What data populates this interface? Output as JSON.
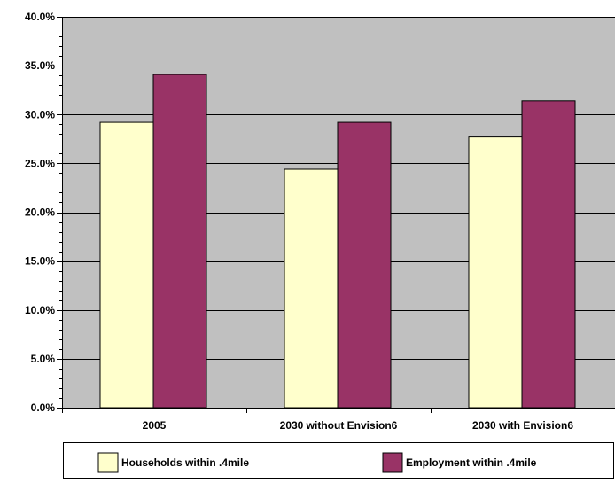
{
  "chart_data": {
    "type": "bar",
    "title": "",
    "xlabel": "",
    "ylabel": "",
    "categories": [
      "2005",
      "2030 without Envision6",
      "2030 with Envision6"
    ],
    "series": [
      {
        "name": "Households within .4mile",
        "values": [
          29.2,
          24.4,
          27.7
        ],
        "color": "#FFFFCC"
      },
      {
        "name": "Employment within .4mile",
        "values": [
          34.1,
          29.2,
          31.4
        ],
        "color": "#993366"
      }
    ],
    "ylim": [
      0,
      40
    ],
    "yticks": [
      {
        "value": 0,
        "label": "0.0%"
      },
      {
        "value": 5,
        "label": "5.0%"
      },
      {
        "value": 10,
        "label": "10.0%"
      },
      {
        "value": 15,
        "label": "15.0%"
      },
      {
        "value": 20,
        "label": "20.0%"
      },
      {
        "value": 25,
        "label": "25.0%"
      },
      {
        "value": 30,
        "label": "30.0%"
      },
      {
        "value": 35,
        "label": "35.0%"
      },
      {
        "value": 40,
        "label": "40.0%"
      }
    ],
    "grid": true,
    "legend_position": "bottom",
    "plot_background": "#C0C0C0"
  }
}
